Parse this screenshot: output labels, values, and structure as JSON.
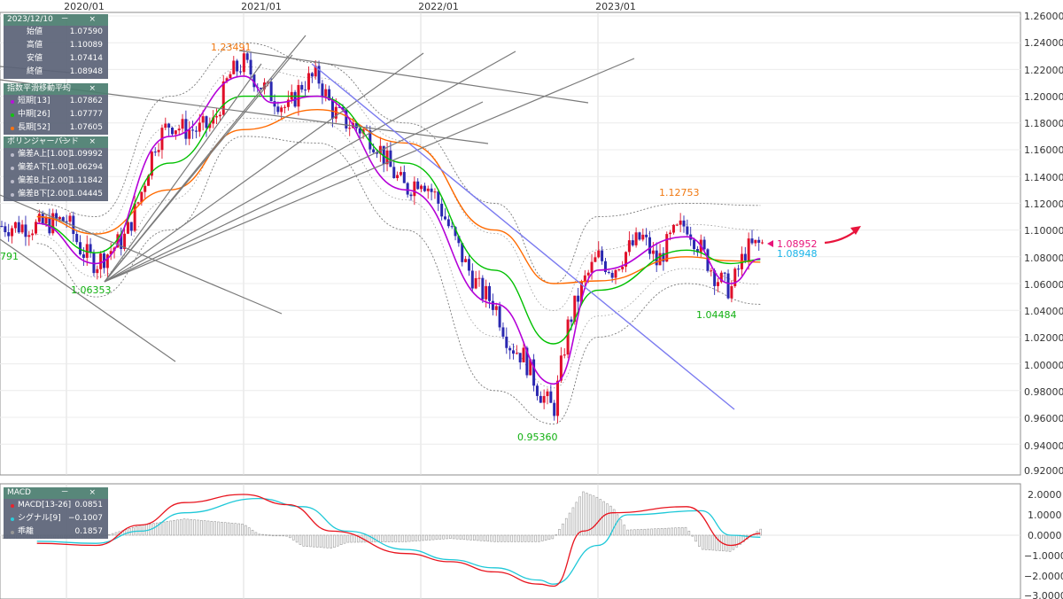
{
  "time_axis": {
    "labels": [
      "2020/01",
      "2021/01",
      "2022/01",
      "2023/01"
    ]
  },
  "ohlc_panel": {
    "title": "2023/12/10",
    "controls": "－ ×",
    "rows": [
      {
        "label": "始値",
        "value": "1.07590"
      },
      {
        "label": "高値",
        "value": "1.10089"
      },
      {
        "label": "安値",
        "value": "1.07414"
      },
      {
        "label": "終値",
        "value": "1.08948"
      }
    ]
  },
  "ema_panel": {
    "title": "指数平滑移動平均",
    "controls": "－ ×",
    "rows": [
      {
        "label": "短期[13]",
        "value": "1.07862",
        "color": "#b400d8"
      },
      {
        "label": "中期[26]",
        "value": "1.07777",
        "color": "#00c000"
      },
      {
        "label": "長期[52]",
        "value": "1.07605",
        "color": "#ff6a00"
      }
    ]
  },
  "bb_panel": {
    "title": "ボリンジャーバンド",
    "controls": "－ ×",
    "rows": [
      {
        "label": "偏差A上[1.00]",
        "value": "1.09992"
      },
      {
        "label": "偏差A下[1.00]",
        "value": "1.06294"
      },
      {
        "label": "偏差B上[2.00]",
        "value": "1.11842"
      },
      {
        "label": "偏差B下[2.00]",
        "value": "1.04445"
      }
    ]
  },
  "macd_panel": {
    "title": "MACD",
    "controls": "－ ×",
    "rows": [
      {
        "label": "MACD[13-26]",
        "value": "0.0851",
        "color": "#e8141e"
      },
      {
        "label": "シグナル[9]",
        "value": "−0.1007",
        "color": "#1ec8d8"
      },
      {
        "label": "乖離",
        "value": "0.1857",
        "color": "#909090"
      }
    ]
  },
  "annotations": {
    "high_2021": "1.23491",
    "low_2020": "1.06353",
    "low_2022": "0.95360",
    "high_2023": "1.12753",
    "low_2023": "1.04484",
    "cut_left": "791",
    "price_marker": "1.08952",
    "last_close": "1.08948"
  },
  "colors": {
    "up": "#e0102a",
    "down": "#2a28b0",
    "ema_short": "#b400d8",
    "ema_mid": "#00c000",
    "ema_long": "#ff6a00",
    "macd": "#e8141e",
    "signal": "#1ec8d8",
    "hist": "#9a9a9a",
    "trend": "#7a7a7a",
    "trend_blue": "#7b7bf0",
    "arrow": "#e8143c",
    "marker": "#e8147a",
    "close_label": "#18b4e8",
    "high_label": "#f07810",
    "low_label": "#10c010"
  },
  "chart_data": [
    {
      "type": "candlestick",
      "title": "",
      "period": "weekly",
      "x_range": [
        "2019-11",
        "2023-12"
      ],
      "y_ticks": [
        "0.92000",
        "0.94000",
        "0.96000",
        "0.98000",
        "1.00000",
        "1.02000",
        "1.04000",
        "1.06000",
        "1.08000",
        "1.10000",
        "1.12000",
        "1.14000",
        "1.16000",
        "1.18000",
        "1.20000",
        "1.22000",
        "1.24000",
        "1.26000"
      ],
      "ylim": [
        0.92,
        1.26
      ],
      "close_path": [
        [
          "2019-11",
          1.103
        ],
        [
          "2020-01",
          1.108
        ],
        [
          "2020-02",
          1.085
        ],
        [
          "2020-03",
          1.075
        ],
        [
          "2020-04",
          1.085
        ],
        [
          "2020-05",
          1.095
        ],
        [
          "2020-06",
          1.125
        ],
        [
          "2020-07",
          1.165
        ],
        [
          "2020-08",
          1.18
        ],
        [
          "2020-09",
          1.175
        ],
        [
          "2020-10",
          1.175
        ],
        [
          "2020-11",
          1.18
        ],
        [
          "2020-12",
          1.215
        ],
        [
          "2021-01",
          1.225
        ],
        [
          "2021-02",
          1.21
        ],
        [
          "2021-03",
          1.2
        ],
        [
          "2021-04",
          1.19
        ],
        [
          "2021-05",
          1.21
        ],
        [
          "2021-06",
          1.215
        ],
        [
          "2021-07",
          1.19
        ],
        [
          "2021-08",
          1.18
        ],
        [
          "2021-09",
          1.175
        ],
        [
          "2021-10",
          1.165
        ],
        [
          "2021-11",
          1.145
        ],
        [
          "2021-12",
          1.13
        ],
        [
          "2022-01",
          1.14
        ],
        [
          "2022-02",
          1.125
        ],
        [
          "2022-03",
          1.1
        ],
        [
          "2022-04",
          1.075
        ],
        [
          "2022-05",
          1.055
        ],
        [
          "2022-06",
          1.045
        ],
        [
          "2022-07",
          1.015
        ],
        [
          "2022-08",
          1.005
        ],
        [
          "2022-09",
          0.98
        ],
        [
          "2022-10",
          0.965
        ],
        [
          "2022-11",
          1.03
        ],
        [
          "2022-12",
          1.06
        ],
        [
          "2023-01",
          1.08
        ],
        [
          "2023-02",
          1.07
        ],
        [
          "2023-03",
          1.085
        ],
        [
          "2023-04",
          1.095
        ],
        [
          "2023-05",
          1.075
        ],
        [
          "2023-06",
          1.095
        ],
        [
          "2023-07",
          1.105
        ],
        [
          "2023-08",
          1.085
        ],
        [
          "2023-09",
          1.065
        ],
        [
          "2023-10",
          1.055
        ],
        [
          "2023-11",
          1.085
        ],
        [
          "2023-12",
          1.0895
        ]
      ],
      "ema_short_13": [
        [
          "2019-11",
          1.105
        ],
        [
          "2020-03",
          1.075
        ],
        [
          "2020-08",
          1.17
        ],
        [
          "2021-01",
          1.215
        ],
        [
          "2021-03",
          1.195
        ],
        [
          "2021-06",
          1.2
        ],
        [
          "2021-12",
          1.13
        ],
        [
          "2022-06",
          1.045
        ],
        [
          "2022-10",
          0.985
        ],
        [
          "2023-01",
          1.07
        ],
        [
          "2023-07",
          1.095
        ],
        [
          "2023-10",
          1.06
        ],
        [
          "2023-12",
          1.0786
        ]
      ],
      "ema_mid_26": [
        [
          "2019-11",
          1.105
        ],
        [
          "2020-03",
          1.083
        ],
        [
          "2020-08",
          1.15
        ],
        [
          "2021-01",
          1.2
        ],
        [
          "2021-06",
          1.2
        ],
        [
          "2021-12",
          1.15
        ],
        [
          "2022-06",
          1.07
        ],
        [
          "2022-10",
          1.015
        ],
        [
          "2023-01",
          1.055
        ],
        [
          "2023-07",
          1.085
        ],
        [
          "2023-10",
          1.075
        ],
        [
          "2023-12",
          1.0778
        ]
      ],
      "ema_long_52": [
        [
          "2019-11",
          1.11
        ],
        [
          "2020-03",
          1.097
        ],
        [
          "2020-08",
          1.13
        ],
        [
          "2021-01",
          1.175
        ],
        [
          "2021-06",
          1.19
        ],
        [
          "2021-12",
          1.165
        ],
        [
          "2022-06",
          1.1
        ],
        [
          "2022-10",
          1.06
        ],
        [
          "2023-01",
          1.062
        ],
        [
          "2023-07",
          1.08
        ],
        [
          "2023-10",
          1.077
        ],
        [
          "2023-12",
          1.076
        ]
      ],
      "bollinger_b_upper": [
        [
          "2019-11",
          1.12
        ],
        [
          "2020-03",
          1.11
        ],
        [
          "2020-08",
          1.2
        ],
        [
          "2021-01",
          1.24
        ],
        [
          "2021-06",
          1.225
        ],
        [
          "2021-12",
          1.18
        ],
        [
          "2022-06",
          1.12
        ],
        [
          "2022-10",
          1.06
        ],
        [
          "2023-01",
          1.11
        ],
        [
          "2023-07",
          1.12
        ],
        [
          "2023-12",
          1.1184
        ]
      ],
      "bollinger_b_lower": [
        [
          "2019-11",
          1.09
        ],
        [
          "2020-03",
          1.05
        ],
        [
          "2020-08",
          1.1
        ],
        [
          "2021-01",
          1.17
        ],
        [
          "2021-06",
          1.165
        ],
        [
          "2021-12",
          1.1
        ],
        [
          "2022-06",
          0.98
        ],
        [
          "2022-10",
          0.955
        ],
        [
          "2023-01",
          1.02
        ],
        [
          "2023-07",
          1.06
        ],
        [
          "2023-12",
          1.0445
        ]
      ],
      "annotations": [
        {
          "date": "2021-01",
          "value": 1.23491,
          "label": "1.23491"
        },
        {
          "date": "2020-03",
          "value": 1.06353,
          "label": "1.06353"
        },
        {
          "date": "2022-09",
          "value": 0.9536,
          "label": "0.95360"
        },
        {
          "date": "2023-07",
          "value": 1.12753,
          "label": "1.12753"
        },
        {
          "date": "2023-10",
          "value": 1.04484,
          "label": "1.04484"
        }
      ]
    },
    {
      "type": "line",
      "title": "MACD",
      "ylim": [
        -3.0,
        2.5
      ],
      "y_ticks": [
        "2.0000",
        "1.0000",
        "0.0000",
        "−1.0000",
        "−2.0000",
        "−3.0000"
      ],
      "series": [
        {
          "name": "MACD[13-26]",
          "points": [
            [
              "2019-11",
              -0.4
            ],
            [
              "2020-03",
              -0.5
            ],
            [
              "2020-06",
              0.5
            ],
            [
              "2020-09",
              1.6
            ],
            [
              "2021-01",
              2.0
            ],
            [
              "2021-04",
              1.5
            ],
            [
              "2021-07",
              0.2
            ],
            [
              "2021-12",
              -0.9
            ],
            [
              "2022-03",
              -1.3
            ],
            [
              "2022-06",
              -1.8
            ],
            [
              "2022-09",
              -2.4
            ],
            [
              "2022-10",
              -2.5
            ],
            [
              "2022-12",
              0.2
            ],
            [
              "2023-02",
              1.1
            ],
            [
              "2023-07",
              1.4
            ],
            [
              "2023-10",
              -0.5
            ],
            [
              "2023-12",
              0.0851
            ]
          ]
        },
        {
          "name": "シグナル[9]",
          "points": [
            [
              "2019-11",
              -0.3
            ],
            [
              "2020-03",
              -0.4
            ],
            [
              "2020-06",
              0.2
            ],
            [
              "2020-09",
              1.1
            ],
            [
              "2021-02",
              1.8
            ],
            [
              "2021-05",
              1.4
            ],
            [
              "2021-08",
              0.2
            ],
            [
              "2021-12",
              -0.7
            ],
            [
              "2022-03",
              -1.2
            ],
            [
              "2022-06",
              -1.6
            ],
            [
              "2022-09",
              -2.2
            ],
            [
              "2022-10",
              -2.4
            ],
            [
              "2023-01",
              -0.5
            ],
            [
              "2023-03",
              1.0
            ],
            [
              "2023-08",
              1.2
            ],
            [
              "2023-10",
              0.0
            ],
            [
              "2023-12",
              -0.1007
            ]
          ]
        }
      ],
      "histogram_name": "乖離",
      "histogram_last": 0.1857
    }
  ]
}
